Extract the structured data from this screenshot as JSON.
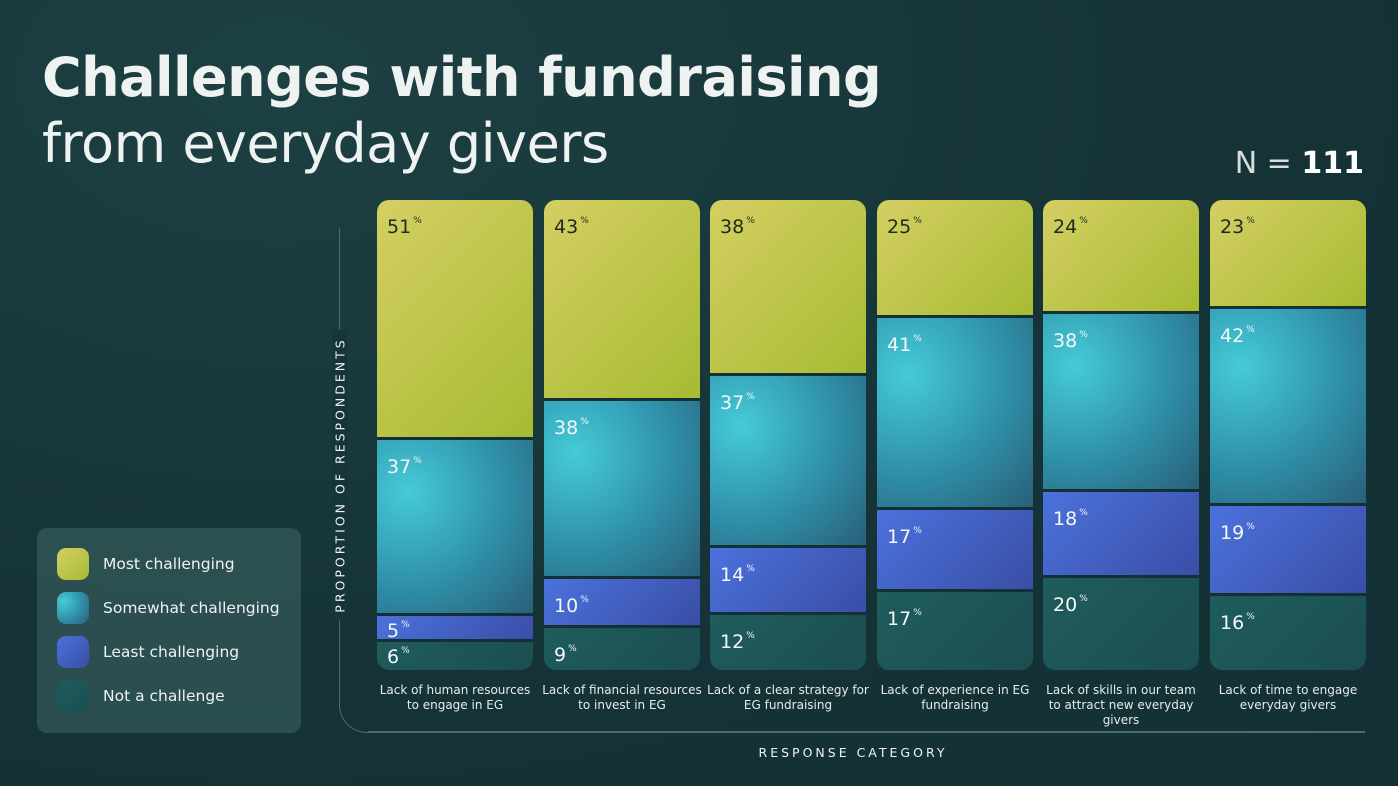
{
  "title_bold": "Challenges with fundraising",
  "title_light": "from everyday givers",
  "n_label": "N =",
  "n_value": "111",
  "legend": [
    {
      "label": "Most challenging",
      "color": "#c6c44e"
    },
    {
      "label": "Somewhat challenging",
      "color": "#3ab4c6"
    },
    {
      "label": "Least challenging",
      "color": "#4668d2"
    },
    {
      "label": "Not a challenge",
      "color": "#25625f"
    }
  ],
  "chart_data": {
    "type": "bar",
    "stacked": true,
    "xlabel": "RESPONSE CATEGORY",
    "ylabel": "PROPORTION OF RESPONDENTS",
    "unit": "%",
    "categories": [
      "Lack of human resources to engage in EG",
      "Lack of financial resources to invest in EG",
      "Lack of a clear strategy for EG fundraising",
      "Lack of experience in EG fundraising",
      "Lack of skills in our team to attract new everyday givers",
      "Lack of time to engage everyday givers"
    ],
    "series": [
      {
        "name": "Most challenging",
        "values": [
          51,
          43,
          38,
          25,
          24,
          23
        ]
      },
      {
        "name": "Somewhat challenging",
        "values": [
          37,
          38,
          37,
          41,
          38,
          42
        ]
      },
      {
        "name": "Least challenging",
        "values": [
          5,
          10,
          14,
          17,
          18,
          19
        ]
      },
      {
        "name": "Not a challenge",
        "values": [
          6,
          9,
          12,
          17,
          20,
          16
        ]
      }
    ],
    "legend_position": "left"
  }
}
